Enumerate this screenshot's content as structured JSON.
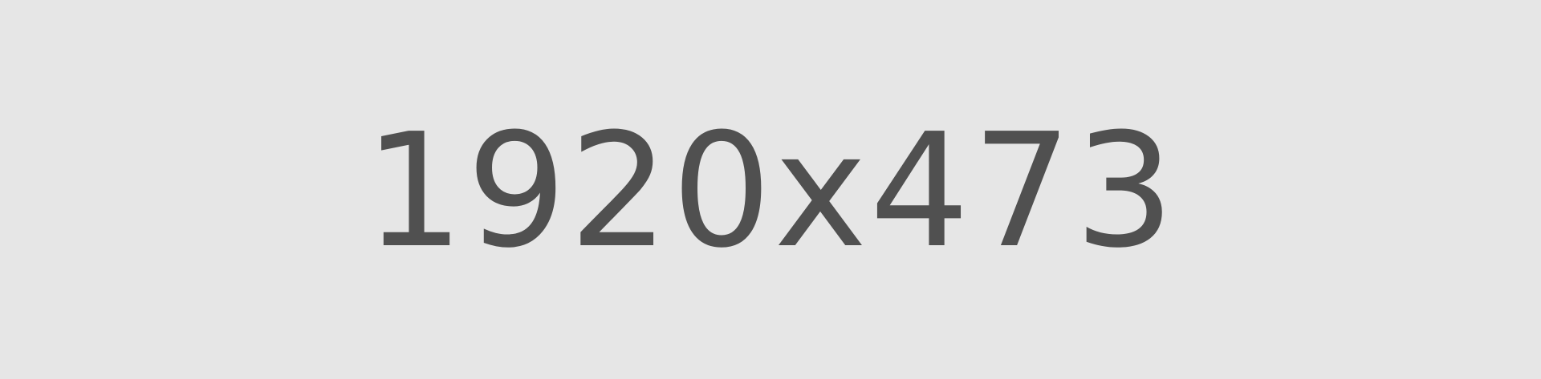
{
  "placeholder": {
    "label": "1920x473"
  },
  "colors": {
    "background": "#E6E6E6",
    "text": "#505050"
  }
}
